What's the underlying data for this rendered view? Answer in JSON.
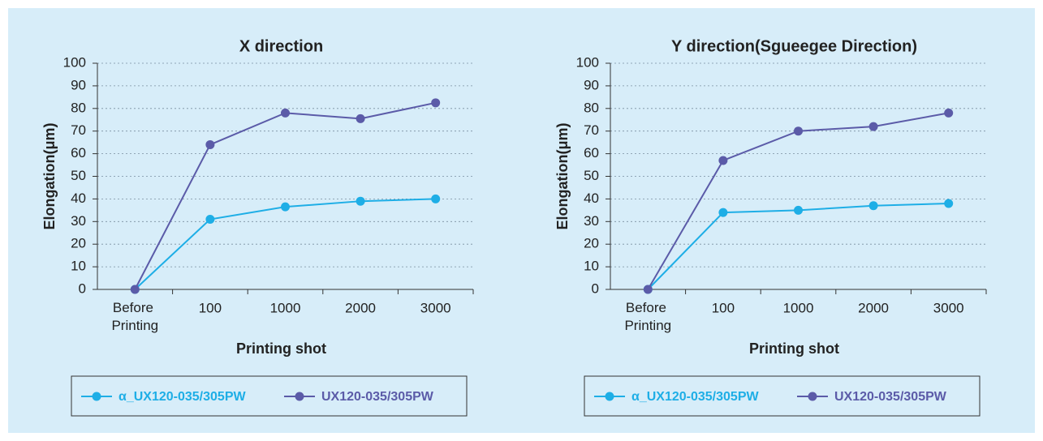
{
  "chart_data": [
    {
      "type": "line",
      "title": "X direction",
      "x_label": "Printing shot",
      "y_label": "Elongation(μm)",
      "categories": [
        "Before Printing",
        "100",
        "1000",
        "2000",
        "3000"
      ],
      "series": [
        {
          "name": "α_UX120-035/305PW",
          "color": "#1eaee6",
          "values": [
            0,
            31,
            36.5,
            39,
            40
          ]
        },
        {
          "name": "UX120-035/305PW",
          "color": "#5b5ba8",
          "values": [
            0,
            64,
            78,
            75.5,
            82.5
          ]
        }
      ],
      "ylim": [
        0,
        100
      ],
      "yticks": [
        0,
        10,
        20,
        30,
        40,
        50,
        60,
        70,
        80,
        90,
        100
      ],
      "grid": true
    },
    {
      "type": "line",
      "title": "Y direction(Sgueegee Direction)",
      "x_label": "Printing shot",
      "y_label": "Elongation(μm)",
      "categories": [
        "Before Printing",
        "100",
        "1000",
        "2000",
        "3000"
      ],
      "series": [
        {
          "name": "α_UX120-035/305PW",
          "color": "#1eaee6",
          "values": [
            0,
            34,
            35,
            37,
            38
          ]
        },
        {
          "name": "UX120-035/305PW",
          "color": "#5b5ba8",
          "values": [
            0,
            57,
            70,
            72,
            78
          ]
        }
      ],
      "ylim": [
        0,
        100
      ],
      "yticks": [
        0,
        10,
        20,
        30,
        40,
        50,
        60,
        70,
        80,
        90,
        100
      ],
      "grid": true
    }
  ]
}
